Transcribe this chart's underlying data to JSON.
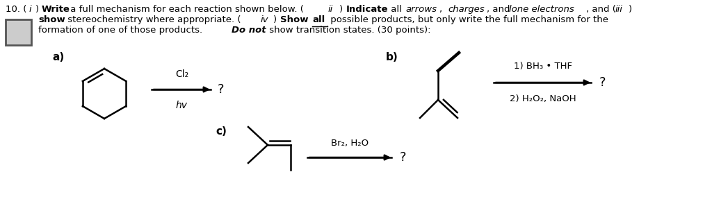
{
  "background_color": "#ffffff",
  "text_color": "#000000",
  "line_color": "#000000",
  "section_a_label": "a)",
  "section_b_label": "b)",
  "section_c_label": "c)",
  "reagent_a_line1": "Cl₂",
  "reagent_a_line2": "hv",
  "reagent_b_line1": "1) BH₃ • THF",
  "reagent_b_line2": "2) H₂O₂, NaOH",
  "reagent_c": "Br₂, H₂O",
  "question_mark": "?"
}
